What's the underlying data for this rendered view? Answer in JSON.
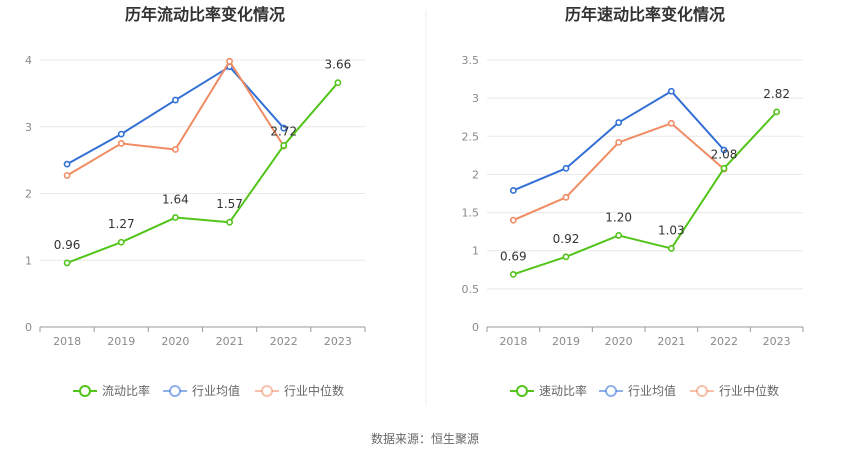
{
  "source": "数据来源：恒生聚源",
  "chart_data": [
    {
      "type": "line",
      "title": "历年流动比率变化情况",
      "categories": [
        "2018",
        "2019",
        "2020",
        "2021",
        "2022",
        "2023"
      ],
      "ylim": [
        0,
        4
      ],
      "yticks": [
        "0",
        "1",
        "2",
        "3",
        "4"
      ],
      "grid": true,
      "legend_position": "bottom",
      "series": [
        {
          "name": "流动比率",
          "color": "#52c41a",
          "values": [
            0.96,
            1.27,
            1.64,
            1.57,
            2.72,
            3.66
          ],
          "labels": [
            "0.96",
            "1.27",
            "1.64",
            "1.57",
            "2.72",
            "3.66"
          ]
        },
        {
          "name": "行业均值",
          "color": "#3370d6",
          "values": [
            2.44,
            2.89,
            3.4,
            3.9,
            2.98,
            null
          ]
        },
        {
          "name": "行业中位数",
          "color": "#f08c64",
          "values": [
            2.27,
            2.75,
            2.66,
            3.98,
            2.71,
            null
          ]
        }
      ]
    },
    {
      "type": "line",
      "title": "历年速动比率变化情况",
      "categories": [
        "2018",
        "2019",
        "2020",
        "2021",
        "2022",
        "2023"
      ],
      "ylim": [
        0,
        3.5
      ],
      "yticks": [
        "0",
        "0.5",
        "1",
        "1.5",
        "2",
        "2.5",
        "3",
        "3.5"
      ],
      "grid": true,
      "legend_position": "bottom",
      "series": [
        {
          "name": "速动比率",
          "color": "#52c41a",
          "values": [
            0.69,
            0.92,
            1.2,
            1.03,
            2.08,
            2.82
          ],
          "labels": [
            "0.69",
            "0.92",
            "1.20",
            "1.03",
            "2.08",
            "2.82"
          ]
        },
        {
          "name": "行业均值",
          "color": "#3370d6",
          "values": [
            1.79,
            2.08,
            2.68,
            3.09,
            2.32,
            null
          ]
        },
        {
          "name": "行业中位数",
          "color": "#f08c64",
          "values": [
            1.4,
            1.7,
            2.42,
            2.67,
            2.07,
            null
          ]
        }
      ]
    }
  ]
}
